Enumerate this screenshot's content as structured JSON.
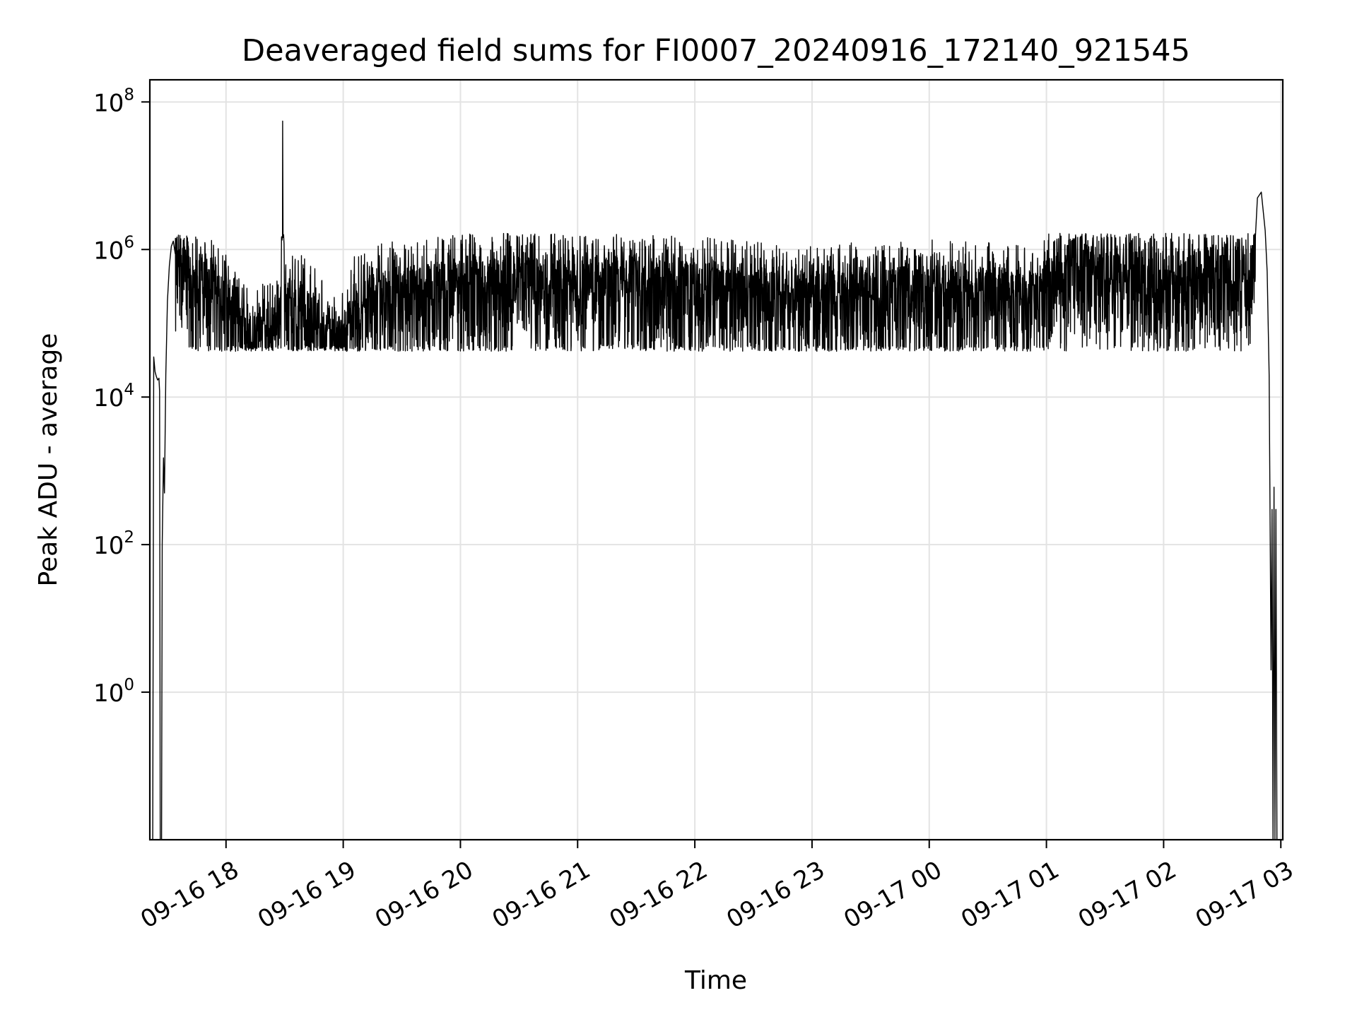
{
  "chart_data": {
    "type": "line",
    "title": "Deaveraged field sums for FI0007_20240916_172140_921545",
    "xlabel": "Time",
    "ylabel": "Peak ADU - average",
    "xscale": "time",
    "yscale": "log",
    "grid": true,
    "legend": "none",
    "xlim": [
      "2024-09-16 17:21",
      "2024-09-17 03:01"
    ],
    "ylim_exponent": [
      -2,
      8.3
    ],
    "x_ticks": [
      {
        "value": "2024-09-16 18:00",
        "label": "09-16 18"
      },
      {
        "value": "2024-09-16 19:00",
        "label": "09-16 19"
      },
      {
        "value": "2024-09-16 20:00",
        "label": "09-16 20"
      },
      {
        "value": "2024-09-16 21:00",
        "label": "09-16 21"
      },
      {
        "value": "2024-09-16 22:00",
        "label": "09-16 22"
      },
      {
        "value": "2024-09-16 23:00",
        "label": "09-16 23"
      },
      {
        "value": "2024-09-17 00:00",
        "label": "09-17 00"
      },
      {
        "value": "2024-09-17 01:00",
        "label": "09-17 01"
      },
      {
        "value": "2024-09-17 02:00",
        "label": "09-17 02"
      },
      {
        "value": "2024-09-17 03:00",
        "label": "09-17 03"
      }
    ],
    "y_ticks": [
      {
        "value": 1,
        "base": "10",
        "exp": "0"
      },
      {
        "value": 100,
        "base": "10",
        "exp": "2"
      },
      {
        "value": 10000,
        "base": "10",
        "exp": "4"
      },
      {
        "value": 1000000,
        "base": "10",
        "exp": "6"
      },
      {
        "value": 100000000,
        "base": "10",
        "exp": "8"
      }
    ],
    "colors": {
      "series": "#000000",
      "grid": "#e3e3e3"
    },
    "series": [
      {
        "points": [
          [
            "2024-09-16 17:21:40",
            0.01
          ],
          [
            "2024-09-16 17:22:30",
            0.01
          ],
          [
            "2024-09-16 17:23:00",
            35000
          ],
          [
            "2024-09-16 17:23:40",
            22000
          ],
          [
            "2024-09-16 17:24:20",
            19000
          ],
          [
            "2024-09-16 17:25:00",
            17000
          ],
          [
            "2024-09-16 17:25:40",
            18000
          ],
          [
            "2024-09-16 17:26:00",
            12000
          ],
          [
            "2024-09-16 17:26:20",
            0.01
          ],
          [
            "2024-09-16 17:27:00",
            0.01
          ],
          [
            "2024-09-16 17:27:20",
            100
          ],
          [
            "2024-09-16 17:28:00",
            1500
          ],
          [
            "2024-09-16 17:28:30",
            500
          ],
          [
            "2024-09-16 17:29:10",
            20000
          ],
          [
            "2024-09-16 17:30:00",
            200000
          ],
          [
            "2024-09-16 17:31:00",
            600000
          ],
          [
            "2024-09-16 17:32:00",
            1100000
          ],
          [
            "2024-09-16 17:33:00",
            1300000
          ],
          [
            "2024-09-16 17:34:00",
            1100000
          ],
          [
            "2024-09-16 17:36:00",
            900000
          ],
          [
            "2024-09-16 17:40:00",
            500000
          ],
          [
            "2024-09-16 17:45:00",
            400000
          ],
          [
            "2024-09-16 17:50:00",
            380000
          ],
          [
            "2024-09-16 17:55:00",
            300000
          ],
          [
            "2024-09-16 18:00:00",
            220000
          ],
          [
            "2024-09-16 18:05:00",
            130000
          ],
          [
            "2024-09-16 18:10:00",
            80000
          ],
          [
            "2024-09-16 18:15:00",
            75000
          ],
          [
            "2024-09-16 18:20:00",
            90000
          ],
          [
            "2024-09-16 18:25:00",
            100000
          ],
          [
            "2024-09-16 18:28:00",
            180000
          ],
          [
            "2024-09-16 18:29:00",
            55000000
          ],
          [
            "2024-09-16 18:30:00",
            200000
          ],
          [
            "2024-09-16 18:35:00",
            250000
          ],
          [
            "2024-09-16 18:45:00",
            150000
          ],
          [
            "2024-09-16 18:50:00",
            90000
          ],
          [
            "2024-09-16 18:55:00",
            70000
          ],
          [
            "2024-09-16 19:00:00",
            75000
          ],
          [
            "2024-09-16 19:05:00",
            200000
          ],
          [
            "2024-09-16 19:15:00",
            280000
          ],
          [
            "2024-09-16 19:30:00",
            350000
          ],
          [
            "2024-09-16 19:45:00",
            380000
          ],
          [
            "2024-09-16 20:00:00",
            420000
          ],
          [
            "2024-09-16 20:30:00",
            450000
          ],
          [
            "2024-09-16 21:00:00",
            420000
          ],
          [
            "2024-09-16 21:30:00",
            400000
          ],
          [
            "2024-09-16 22:00:00",
            380000
          ],
          [
            "2024-09-16 22:30:00",
            320000
          ],
          [
            "2024-09-16 23:00:00",
            300000
          ],
          [
            "2024-09-16 23:30:00",
            320000
          ],
          [
            "2024-09-17 00:00:00",
            340000
          ],
          [
            "2024-09-17 00:30:00",
            330000
          ],
          [
            "2024-09-17 00:55:00",
            300000
          ],
          [
            "2024-09-17 01:00:00",
            450000
          ],
          [
            "2024-09-17 01:15:00",
            900000
          ],
          [
            "2024-09-17 01:30:00",
            600000
          ],
          [
            "2024-09-17 02:00:00",
            500000
          ],
          [
            "2024-09-17 02:30:00",
            700000
          ],
          [
            "2024-09-17 02:45:00",
            600000
          ],
          [
            "2024-09-17 02:48:00",
            5000000
          ],
          [
            "2024-09-17 02:50:00",
            6000000
          ],
          [
            "2024-09-17 02:52:00",
            1800000
          ],
          [
            "2024-09-17 02:53:00",
            500000
          ],
          [
            "2024-09-17 02:54:00",
            20000
          ],
          [
            "2024-09-17 02:55:00",
            2
          ],
          [
            "2024-09-17 02:55:30",
            300
          ],
          [
            "2024-09-17 02:56:00",
            0.01
          ],
          [
            "2024-09-17 02:56:30",
            600
          ],
          [
            "2024-09-17 02:57:00",
            0.01
          ],
          [
            "2024-09-17 02:57:30",
            300
          ],
          [
            "2024-09-17 02:58:00",
            0.01
          ]
        ]
      }
    ]
  }
}
